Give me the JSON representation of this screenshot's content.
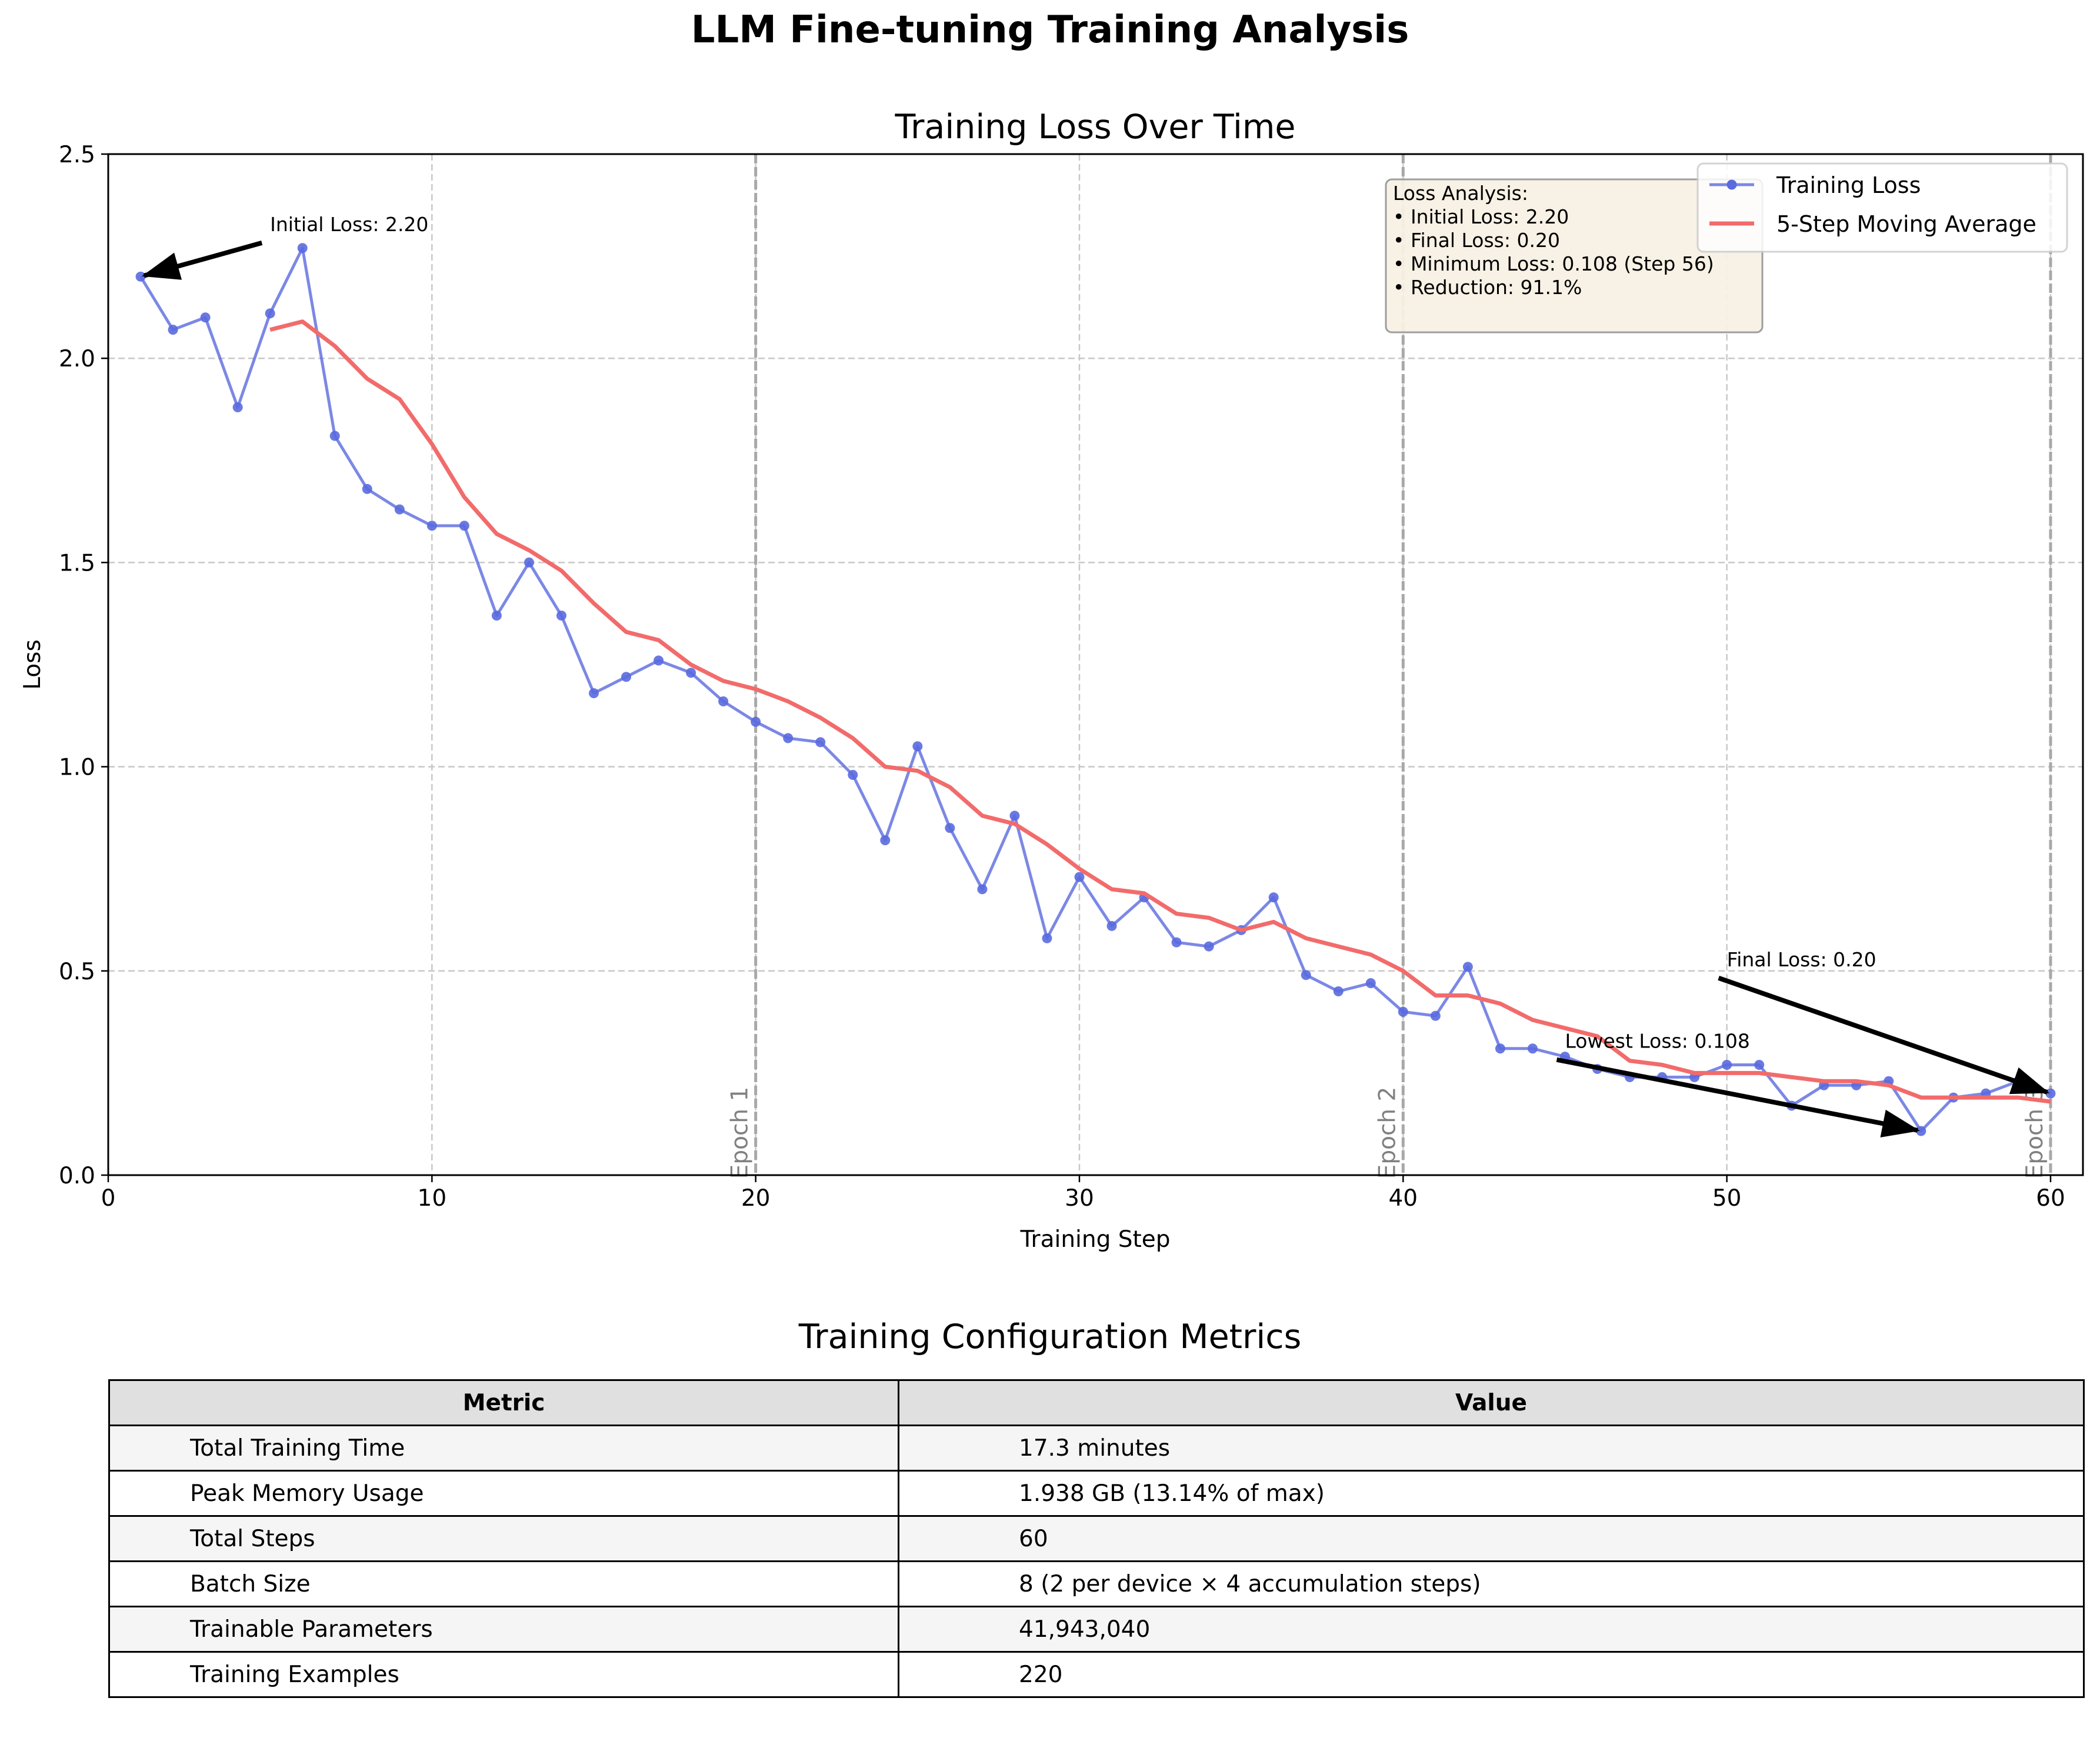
{
  "figure_title": "LLM Fine-tuning Training Analysis",
  "colors": {
    "training_loss": "#5a6adf",
    "moving_average": "#f26b6b",
    "epoch_line": "#a8a8a8",
    "grid": "#c8c8c8",
    "stats_box_bg": "#f8f1e4",
    "table_header_bg": "#e0e0e0",
    "table_alt_row_bg": "#f5f5f5"
  },
  "chart_data": {
    "type": "line",
    "title": "Training Loss Over Time",
    "xlabel": "Training Step",
    "ylabel": "Loss",
    "xlim": [
      0,
      61
    ],
    "ylim": [
      0,
      2.5
    ],
    "xticks": [
      0,
      10,
      20,
      30,
      40,
      50,
      60
    ],
    "yticks": [
      0.0,
      0.5,
      1.0,
      1.5,
      2.0,
      2.5
    ],
    "ytick_labels": [
      "0.0",
      "0.5",
      "1.0",
      "1.5",
      "2.0",
      "2.5"
    ],
    "grid": true,
    "legend_position": "upper right",
    "series": [
      {
        "name": "Training Loss",
        "style": "line-with-markers",
        "x": [
          1,
          2,
          3,
          4,
          5,
          6,
          7,
          8,
          9,
          10,
          11,
          12,
          13,
          14,
          15,
          16,
          17,
          18,
          19,
          20,
          21,
          22,
          23,
          24,
          25,
          26,
          27,
          28,
          29,
          30,
          31,
          32,
          33,
          34,
          35,
          36,
          37,
          38,
          39,
          40,
          41,
          42,
          43,
          44,
          45,
          46,
          47,
          48,
          49,
          50,
          51,
          52,
          53,
          54,
          55,
          56,
          57,
          58,
          59,
          60
        ],
        "values": [
          2.2,
          2.07,
          2.1,
          1.88,
          2.11,
          2.27,
          1.81,
          1.68,
          1.63,
          1.59,
          1.59,
          1.37,
          1.5,
          1.37,
          1.18,
          1.22,
          1.26,
          1.23,
          1.16,
          1.11,
          1.07,
          1.06,
          0.98,
          0.82,
          1.05,
          0.85,
          0.7,
          0.88,
          0.58,
          0.73,
          0.61,
          0.68,
          0.57,
          0.56,
          0.6,
          0.68,
          0.49,
          0.45,
          0.47,
          0.4,
          0.39,
          0.51,
          0.31,
          0.31,
          0.29,
          0.26,
          0.24,
          0.24,
          0.24,
          0.27,
          0.27,
          0.17,
          0.22,
          0.22,
          0.23,
          0.108,
          0.19,
          0.2,
          0.23,
          0.2
        ]
      },
      {
        "name": "5-Step Moving Average",
        "style": "line",
        "x": [
          5,
          6,
          7,
          8,
          9,
          10,
          11,
          12,
          13,
          14,
          15,
          16,
          17,
          18,
          19,
          20,
          21,
          22,
          23,
          24,
          25,
          26,
          27,
          28,
          29,
          30,
          31,
          32,
          33,
          34,
          35,
          36,
          37,
          38,
          39,
          40,
          41,
          42,
          43,
          44,
          45,
          46,
          47,
          48,
          49,
          50,
          51,
          52,
          53,
          54,
          55,
          56,
          57,
          58,
          59,
          60
        ],
        "values": [
          2.07,
          2.09,
          2.03,
          1.95,
          1.9,
          1.79,
          1.66,
          1.57,
          1.53,
          1.48,
          1.4,
          1.33,
          1.31,
          1.25,
          1.21,
          1.19,
          1.16,
          1.12,
          1.07,
          1.0,
          0.99,
          0.95,
          0.88,
          0.86,
          0.81,
          0.75,
          0.7,
          0.69,
          0.64,
          0.63,
          0.6,
          0.62,
          0.58,
          0.56,
          0.54,
          0.5,
          0.44,
          0.44,
          0.42,
          0.38,
          0.36,
          0.34,
          0.28,
          0.27,
          0.25,
          0.25,
          0.25,
          0.24,
          0.23,
          0.23,
          0.22,
          0.19,
          0.19,
          0.19,
          0.19,
          0.18
        ]
      }
    ],
    "epoch_lines": [
      {
        "x": 20,
        "label": "Epoch 1"
      },
      {
        "x": 40,
        "label": "Epoch 2"
      },
      {
        "x": 60,
        "label": "Epoch 3"
      }
    ],
    "annotations": [
      {
        "text": "Initial Loss: 2.20",
        "point": [
          1,
          2.2
        ],
        "text_at": [
          5,
          2.3
        ]
      },
      {
        "text": "Lowest Loss: 0.108",
        "point": [
          56,
          0.108
        ],
        "text_at": [
          45,
          0.3
        ]
      },
      {
        "text": "Final Loss: 0.20",
        "point": [
          60,
          0.2
        ],
        "text_at": [
          50,
          0.5
        ]
      }
    ],
    "stats_box": {
      "lines": [
        "Loss Analysis:",
        "• Initial Loss: 2.20",
        "• Final Loss: 0.20",
        "• Minimum Loss: 0.108 (Step 56)",
        "• Reduction: 91.1%"
      ]
    }
  },
  "table": {
    "title": "Training Configuration Metrics",
    "headers": [
      "Metric",
      "Value"
    ],
    "rows": [
      [
        "Total Training Time",
        "17.3 minutes"
      ],
      [
        "Peak Memory Usage",
        "1.938 GB (13.14% of max)"
      ],
      [
        "Total Steps",
        "60"
      ],
      [
        "Batch Size",
        "8 (2 per device × 4 accumulation steps)"
      ],
      [
        "Trainable Parameters",
        "41,943,040"
      ],
      [
        "Training Examples",
        "220"
      ]
    ]
  }
}
